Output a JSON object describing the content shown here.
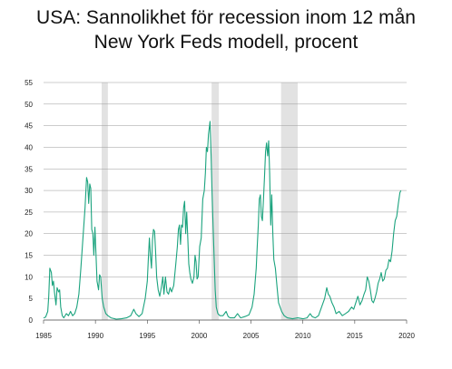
{
  "chart_data": {
    "type": "line",
    "title": "USA: Sannolikhet för recession inom 12 mån",
    "subtitle": "New York Feds modell, procent",
    "xlabel": "",
    "ylabel": "",
    "xlim": [
      1985,
      2020
    ],
    "ylim": [
      0,
      55
    ],
    "grid": true,
    "x_ticks": [
      "1985",
      "1990",
      "1995",
      "2000",
      "2005",
      "2010",
      "2015",
      "2020"
    ],
    "y_ticks": [
      "0",
      "5",
      "10",
      "15",
      "20",
      "25",
      "30",
      "35",
      "40",
      "45",
      "50",
      "55"
    ],
    "recession_periods": [
      [
        1990.6,
        1991.2
      ],
      [
        2001.2,
        2001.9
      ],
      [
        2007.9,
        2009.5
      ]
    ],
    "line_color": "#1ba37e",
    "shade_color": "#e2e2e2",
    "series": [
      {
        "values": [
          [
            1985.0,
            0.5
          ],
          [
            1985.2,
            0.7
          ],
          [
            1985.4,
            2.0
          ],
          [
            1985.5,
            5.5
          ],
          [
            1985.6,
            12.0
          ],
          [
            1985.75,
            11.0
          ],
          [
            1985.85,
            8.0
          ],
          [
            1985.95,
            9.0
          ],
          [
            1986.05,
            6.5
          ],
          [
            1986.2,
            3.5
          ],
          [
            1986.3,
            7.5
          ],
          [
            1986.45,
            6.5
          ],
          [
            1986.55,
            7.0
          ],
          [
            1986.65,
            3.0
          ],
          [
            1986.8,
            1.0
          ],
          [
            1986.95,
            0.5
          ],
          [
            1987.2,
            1.5
          ],
          [
            1987.4,
            1.0
          ],
          [
            1987.6,
            2.0
          ],
          [
            1987.8,
            1.0
          ],
          [
            1988.0,
            1.5
          ],
          [
            1988.2,
            3.0
          ],
          [
            1988.4,
            6.0
          ],
          [
            1988.6,
            12.0
          ],
          [
            1988.8,
            19.0
          ],
          [
            1989.0,
            26.0
          ],
          [
            1989.15,
            33.0
          ],
          [
            1989.25,
            32.0
          ],
          [
            1989.35,
            27.0
          ],
          [
            1989.45,
            31.5
          ],
          [
            1989.55,
            30.5
          ],
          [
            1989.65,
            21.0
          ],
          [
            1989.75,
            20.0
          ],
          [
            1989.85,
            15.0
          ],
          [
            1989.95,
            21.5
          ],
          [
            1990.05,
            15.5
          ],
          [
            1990.15,
            9.0
          ],
          [
            1990.3,
            7.0
          ],
          [
            1990.4,
            10.5
          ],
          [
            1990.5,
            10.0
          ],
          [
            1990.65,
            5.0
          ],
          [
            1990.8,
            3.0
          ],
          [
            1991.0,
            1.5
          ],
          [
            1991.2,
            1.0
          ],
          [
            1991.5,
            0.5
          ],
          [
            1992.0,
            0.2
          ],
          [
            1992.5,
            0.3
          ],
          [
            1993.0,
            0.5
          ],
          [
            1993.4,
            1.0
          ],
          [
            1993.7,
            2.5
          ],
          [
            1993.9,
            1.5
          ],
          [
            1994.2,
            0.8
          ],
          [
            1994.5,
            1.5
          ],
          [
            1994.8,
            5.0
          ],
          [
            1995.0,
            9.0
          ],
          [
            1995.1,
            14.0
          ],
          [
            1995.2,
            19.0
          ],
          [
            1995.3,
            15.0
          ],
          [
            1995.4,
            12.0
          ],
          [
            1995.5,
            18.5
          ],
          [
            1995.6,
            21.0
          ],
          [
            1995.7,
            20.5
          ],
          [
            1995.8,
            16.0
          ],
          [
            1995.9,
            10.0
          ],
          [
            1996.05,
            7.0
          ],
          [
            1996.2,
            5.5
          ],
          [
            1996.35,
            7.5
          ],
          [
            1996.5,
            10.0
          ],
          [
            1996.6,
            6.0
          ],
          [
            1996.75,
            10.0
          ],
          [
            1996.9,
            6.5
          ],
          [
            1997.05,
            6.0
          ],
          [
            1997.2,
            7.5
          ],
          [
            1997.35,
            6.5
          ],
          [
            1997.55,
            8.0
          ],
          [
            1997.75,
            13.0
          ],
          [
            1997.9,
            17.0
          ],
          [
            1998.0,
            21.0
          ],
          [
            1998.1,
            22.0
          ],
          [
            1998.2,
            17.5
          ],
          [
            1998.3,
            22.0
          ],
          [
            1998.4,
            21.5
          ],
          [
            1998.5,
            26.0
          ],
          [
            1998.6,
            27.5
          ],
          [
            1998.7,
            20.0
          ],
          [
            1998.8,
            25.0
          ],
          [
            1998.9,
            19.0
          ],
          [
            1999.0,
            13.0
          ],
          [
            1999.1,
            11.0
          ],
          [
            1999.2,
            9.5
          ],
          [
            1999.35,
            8.5
          ],
          [
            1999.5,
            10.0
          ],
          [
            1999.6,
            15.0
          ],
          [
            1999.7,
            13.5
          ],
          [
            1999.8,
            9.5
          ],
          [
            1999.9,
            10.0
          ],
          [
            2000.05,
            17.0
          ],
          [
            2000.2,
            19.0
          ],
          [
            2000.35,
            28.0
          ],
          [
            2000.5,
            30.0
          ],
          [
            2000.6,
            34.0
          ],
          [
            2000.7,
            40.0
          ],
          [
            2000.8,
            39.0
          ],
          [
            2000.9,
            43.0
          ],
          [
            2001.0,
            45.0
          ],
          [
            2001.05,
            46.0
          ],
          [
            2001.15,
            38.0
          ],
          [
            2001.25,
            29.0
          ],
          [
            2001.35,
            21.0
          ],
          [
            2001.45,
            14.0
          ],
          [
            2001.55,
            7.0
          ],
          [
            2001.65,
            3.0
          ],
          [
            2001.8,
            1.5
          ],
          [
            2002.0,
            1.0
          ],
          [
            2002.3,
            1.0
          ],
          [
            2002.6,
            2.0
          ],
          [
            2002.8,
            0.8
          ],
          [
            2003.0,
            0.5
          ],
          [
            2003.4,
            0.5
          ],
          [
            2003.7,
            1.5
          ],
          [
            2004.0,
            0.5
          ],
          [
            2004.4,
            0.8
          ],
          [
            2004.8,
            1.2
          ],
          [
            2005.1,
            3.0
          ],
          [
            2005.3,
            6.0
          ],
          [
            2005.5,
            12.0
          ],
          [
            2005.6,
            17.0
          ],
          [
            2005.7,
            22.0
          ],
          [
            2005.8,
            28.0
          ],
          [
            2005.9,
            29.0
          ],
          [
            2006.0,
            24.0
          ],
          [
            2006.1,
            23.0
          ],
          [
            2006.2,
            28.0
          ],
          [
            2006.3,
            33.0
          ],
          [
            2006.4,
            39.0
          ],
          [
            2006.5,
            41.0
          ],
          [
            2006.6,
            38.0
          ],
          [
            2006.7,
            41.5
          ],
          [
            2006.8,
            34.0
          ],
          [
            2006.9,
            22.0
          ],
          [
            2007.0,
            29.0
          ],
          [
            2007.1,
            20.0
          ],
          [
            2007.2,
            14.0
          ],
          [
            2007.35,
            12.0
          ],
          [
            2007.5,
            8.0
          ],
          [
            2007.65,
            4.0
          ],
          [
            2007.8,
            3.0
          ],
          [
            2007.95,
            2.0
          ],
          [
            2008.2,
            1.0
          ],
          [
            2008.5,
            0.5
          ],
          [
            2009.0,
            0.3
          ],
          [
            2009.5,
            0.5
          ],
          [
            2010.0,
            0.3
          ],
          [
            2010.4,
            0.5
          ],
          [
            2010.7,
            1.5
          ],
          [
            2010.9,
            0.8
          ],
          [
            2011.2,
            0.5
          ],
          [
            2011.5,
            1.0
          ],
          [
            2011.8,
            3.0
          ],
          [
            2012.1,
            5.0
          ],
          [
            2012.3,
            7.5
          ],
          [
            2012.45,
            6.0
          ],
          [
            2012.6,
            5.5
          ],
          [
            2012.8,
            4.0
          ],
          [
            2013.0,
            3.0
          ],
          [
            2013.2,
            1.5
          ],
          [
            2013.5,
            2.0
          ],
          [
            2013.8,
            1.0
          ],
          [
            2014.1,
            1.5
          ],
          [
            2014.4,
            2.0
          ],
          [
            2014.7,
            3.0
          ],
          [
            2014.9,
            2.5
          ],
          [
            2015.1,
            4.0
          ],
          [
            2015.3,
            5.5
          ],
          [
            2015.5,
            3.5
          ],
          [
            2015.7,
            4.5
          ],
          [
            2015.9,
            6.0
          ],
          [
            2016.05,
            7.0
          ],
          [
            2016.2,
            10.0
          ],
          [
            2016.35,
            9.0
          ],
          [
            2016.5,
            7.0
          ],
          [
            2016.65,
            4.5
          ],
          [
            2016.8,
            4.0
          ],
          [
            2016.95,
            5.0
          ],
          [
            2017.1,
            6.5
          ],
          [
            2017.25,
            8.5
          ],
          [
            2017.4,
            9.5
          ],
          [
            2017.55,
            11.0
          ],
          [
            2017.7,
            9.0
          ],
          [
            2017.85,
            9.5
          ],
          [
            2018.0,
            11.5
          ],
          [
            2018.15,
            12.0
          ],
          [
            2018.3,
            14.0
          ],
          [
            2018.45,
            13.5
          ],
          [
            2018.6,
            16.0
          ],
          [
            2018.75,
            20.0
          ],
          [
            2018.9,
            23.0
          ],
          [
            2019.05,
            24.0
          ],
          [
            2019.2,
            27.0
          ],
          [
            2019.35,
            29.5
          ],
          [
            2019.45,
            30.0
          ]
        ]
      }
    ]
  }
}
